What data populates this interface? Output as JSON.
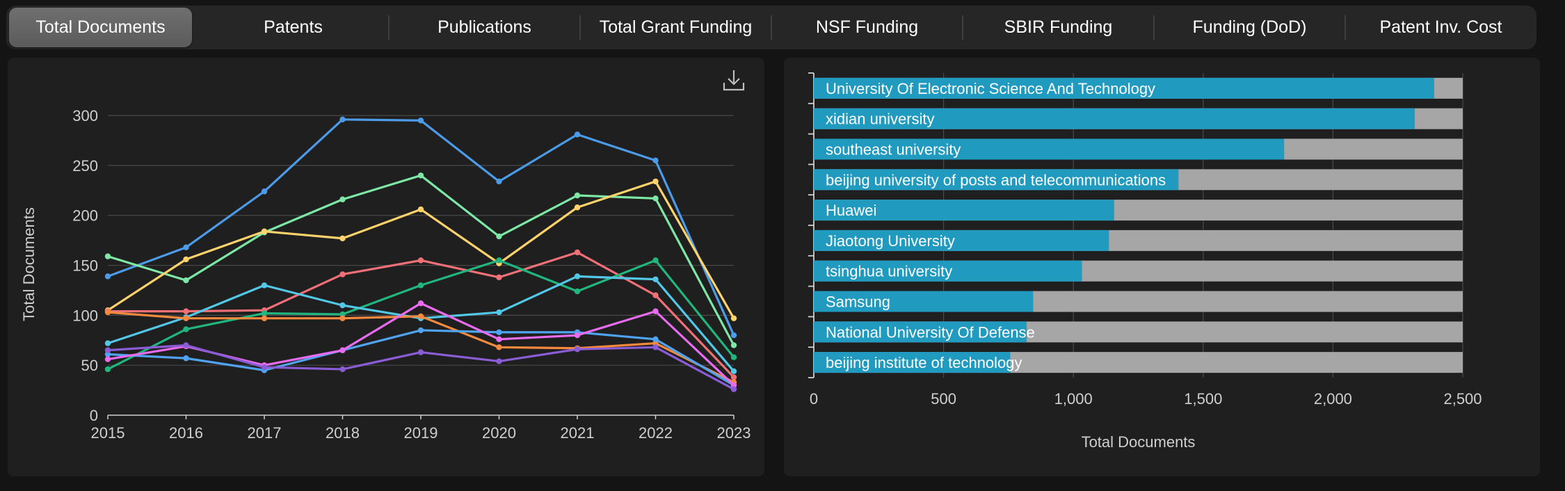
{
  "tabs": [
    {
      "label": "Total Documents",
      "active": true
    },
    {
      "label": "Patents",
      "active": false
    },
    {
      "label": "Publications",
      "active": false
    },
    {
      "label": "Total Grant Funding",
      "active": false
    },
    {
      "label": "NSF Funding",
      "active": false
    },
    {
      "label": "SBIR Funding",
      "active": false
    },
    {
      "label": "Funding (DoD)",
      "active": false
    },
    {
      "label": "Patent Inv. Cost",
      "active": false
    }
  ],
  "colors": {
    "grid": "#4a4a4a",
    "axis": "#d0d0d0",
    "tick_text": "#cfcfcf",
    "bar_value": "#219ac0",
    "bar_total": "#a6a6a6"
  },
  "chart_data": [
    {
      "type": "line",
      "ylabel": "Total Documents",
      "xlabel": "",
      "x": [
        2015,
        2016,
        2017,
        2018,
        2019,
        2020,
        2021,
        2022,
        2023
      ],
      "ylim": [
        0,
        300
      ],
      "yticks": [
        0,
        50,
        100,
        150,
        200,
        250,
        300
      ],
      "grid": true,
      "series": [
        {
          "color": "#4c9be8",
          "values": [
            139,
            168,
            224,
            296,
            295,
            234,
            281,
            255,
            80
          ]
        },
        {
          "color": "#7de8a6",
          "values": [
            159,
            135,
            183,
            216,
            240,
            179,
            220,
            217,
            70
          ]
        },
        {
          "color": "#ffd36b",
          "values": [
            105,
            156,
            184,
            177,
            206,
            152,
            208,
            234,
            97
          ]
        },
        {
          "color": "#f07077",
          "values": [
            104,
            104,
            105,
            141,
            155,
            138,
            163,
            120,
            38
          ]
        },
        {
          "color": "#20b67e",
          "values": [
            46,
            86,
            102,
            101,
            130,
            155,
            124,
            155,
            58
          ]
        },
        {
          "color": "#52c7e6",
          "values": [
            72,
            98,
            130,
            110,
            97,
            103,
            139,
            136,
            44
          ]
        },
        {
          "color": "#f58a3e",
          "values": [
            103,
            97,
            97,
            97,
            99,
            68,
            67,
            72,
            33
          ]
        },
        {
          "color": "#4fa3f0",
          "values": [
            61,
            57,
            45,
            65,
            85,
            83,
            83,
            76,
            30
          ]
        },
        {
          "color": "#e86bf0",
          "values": [
            56,
            69,
            50,
            65,
            112,
            76,
            80,
            104,
            30
          ]
        },
        {
          "color": "#8a5cd6",
          "values": [
            65,
            70,
            48,
            46,
            63,
            54,
            66,
            68,
            26
          ]
        }
      ]
    },
    {
      "type": "bar",
      "orientation": "horizontal",
      "stacked": "overlay",
      "xlabel": "Total Documents",
      "xlim": [
        0,
        2500
      ],
      "xticks": [
        "0",
        "500",
        "1,000",
        "1,500",
        "2,000",
        "2,500"
      ],
      "xtick_values": [
        0,
        500,
        1000,
        1500,
        2000,
        2500
      ],
      "grid": true,
      "categories": [
        "University Of Electronic Science And Technology",
        "xidian university",
        "southeast university",
        "beijing university of posts and telecommunications",
        "Huawei",
        "Jiaotong University",
        "tsinghua university",
        "Samsung",
        "National University Of Defense",
        "beijing institute of technology"
      ],
      "values": [
        2390,
        2315,
        1812,
        1405,
        1157,
        1137,
        1033,
        845,
        820,
        757
      ],
      "totals": [
        2500,
        2500,
        2500,
        2500,
        2500,
        2500,
        2500,
        2500,
        2500,
        2500
      ]
    }
  ]
}
